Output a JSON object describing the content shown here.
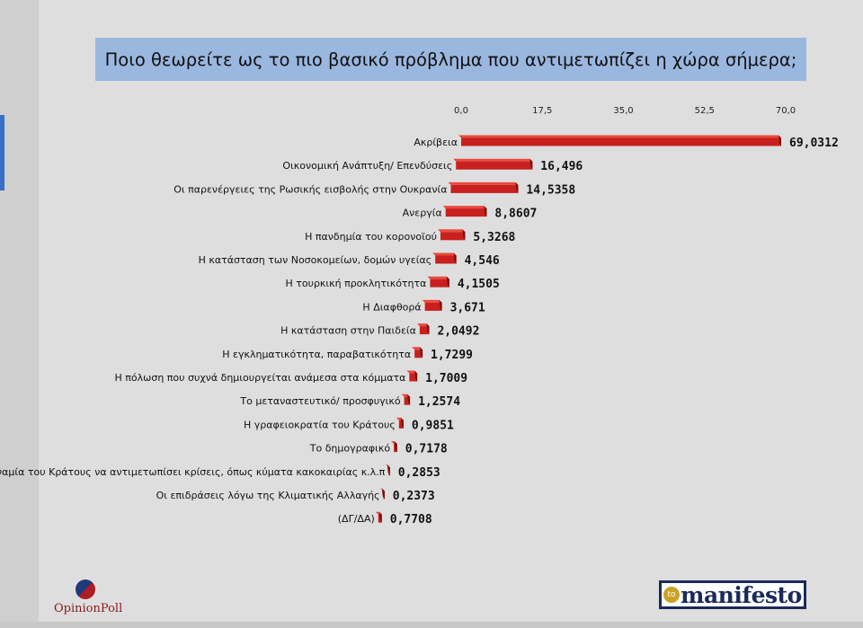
{
  "chart_data": {
    "type": "bar",
    "orientation": "horizontal",
    "title": "Ποιο θεωρείτε ως το πιο βασικό πρόβλημα που αντιμετωπίζει η χώρα σήμερα;",
    "xlim": [
      0,
      70
    ],
    "ticks": [
      "0,0",
      "17,5",
      "35,0",
      "52,5",
      "70,0"
    ],
    "tick_values": [
      0,
      17.5,
      35,
      52.5,
      70
    ],
    "categories": [
      "Ακρίβεια",
      "Οικονομική Ανάπτυξη/ Επενδύσεις",
      "Οι παρενέργειες της Ρωσικής εισβολής στην Ουκρανία",
      "Ανεργία",
      "Η πανδημία του κορονοϊού",
      "Η κατάσταση των Νοσοκομείων, δομών υγείας",
      "Η τουρκική προκλητικότητα",
      "Η Διαφθορά",
      "Η κατάσταση στην Παιδεία",
      "Η εγκληματικότητα, παραβατικότητα",
      "Η πόλωση που συχνά δημιουργείται ανάμεσα στα κόμματα",
      "Το μεταναστευτικό/ προσφυγικό",
      "Η γραφειοκρατία του Κράτους",
      "Το δημογραφικό",
      "Η αδυναμία του Κράτους να αντιμετωπίσει κρίσεις, όπως κύματα κακοκαιρίας κ.λ.π",
      "Οι επιδράσεις λόγω της Κλιματικής Αλλαγής",
      "(ΔΓ/ΔΑ)"
    ],
    "values": [
      69.0312,
      16.496,
      14.5358,
      8.8607,
      5.3268,
      4.546,
      4.1505,
      3.671,
      2.0492,
      1.7299,
      1.7009,
      1.2574,
      0.9851,
      0.7178,
      0.2853,
      0.2373,
      0.7708
    ],
    "value_labels": [
      "69,0312",
      "16,496",
      "14,5358",
      "8,8607",
      "5,3268",
      "4,546",
      "4,1505",
      "3,671",
      "2,0492",
      "1,7299",
      "1,7009",
      "1,2574",
      "0,9851",
      "0,7178",
      "0,2853",
      "0,2373",
      "0,7708"
    ],
    "bar_color": "#c8201e",
    "bar_highlight": "#e84a3c",
    "bar_shadow": "#7a0f0e",
    "grid": false,
    "legend": "none"
  },
  "logos": {
    "opinionpoll": "OpinionPoll",
    "manifesto_to": "to",
    "manifesto": "manifesto"
  }
}
